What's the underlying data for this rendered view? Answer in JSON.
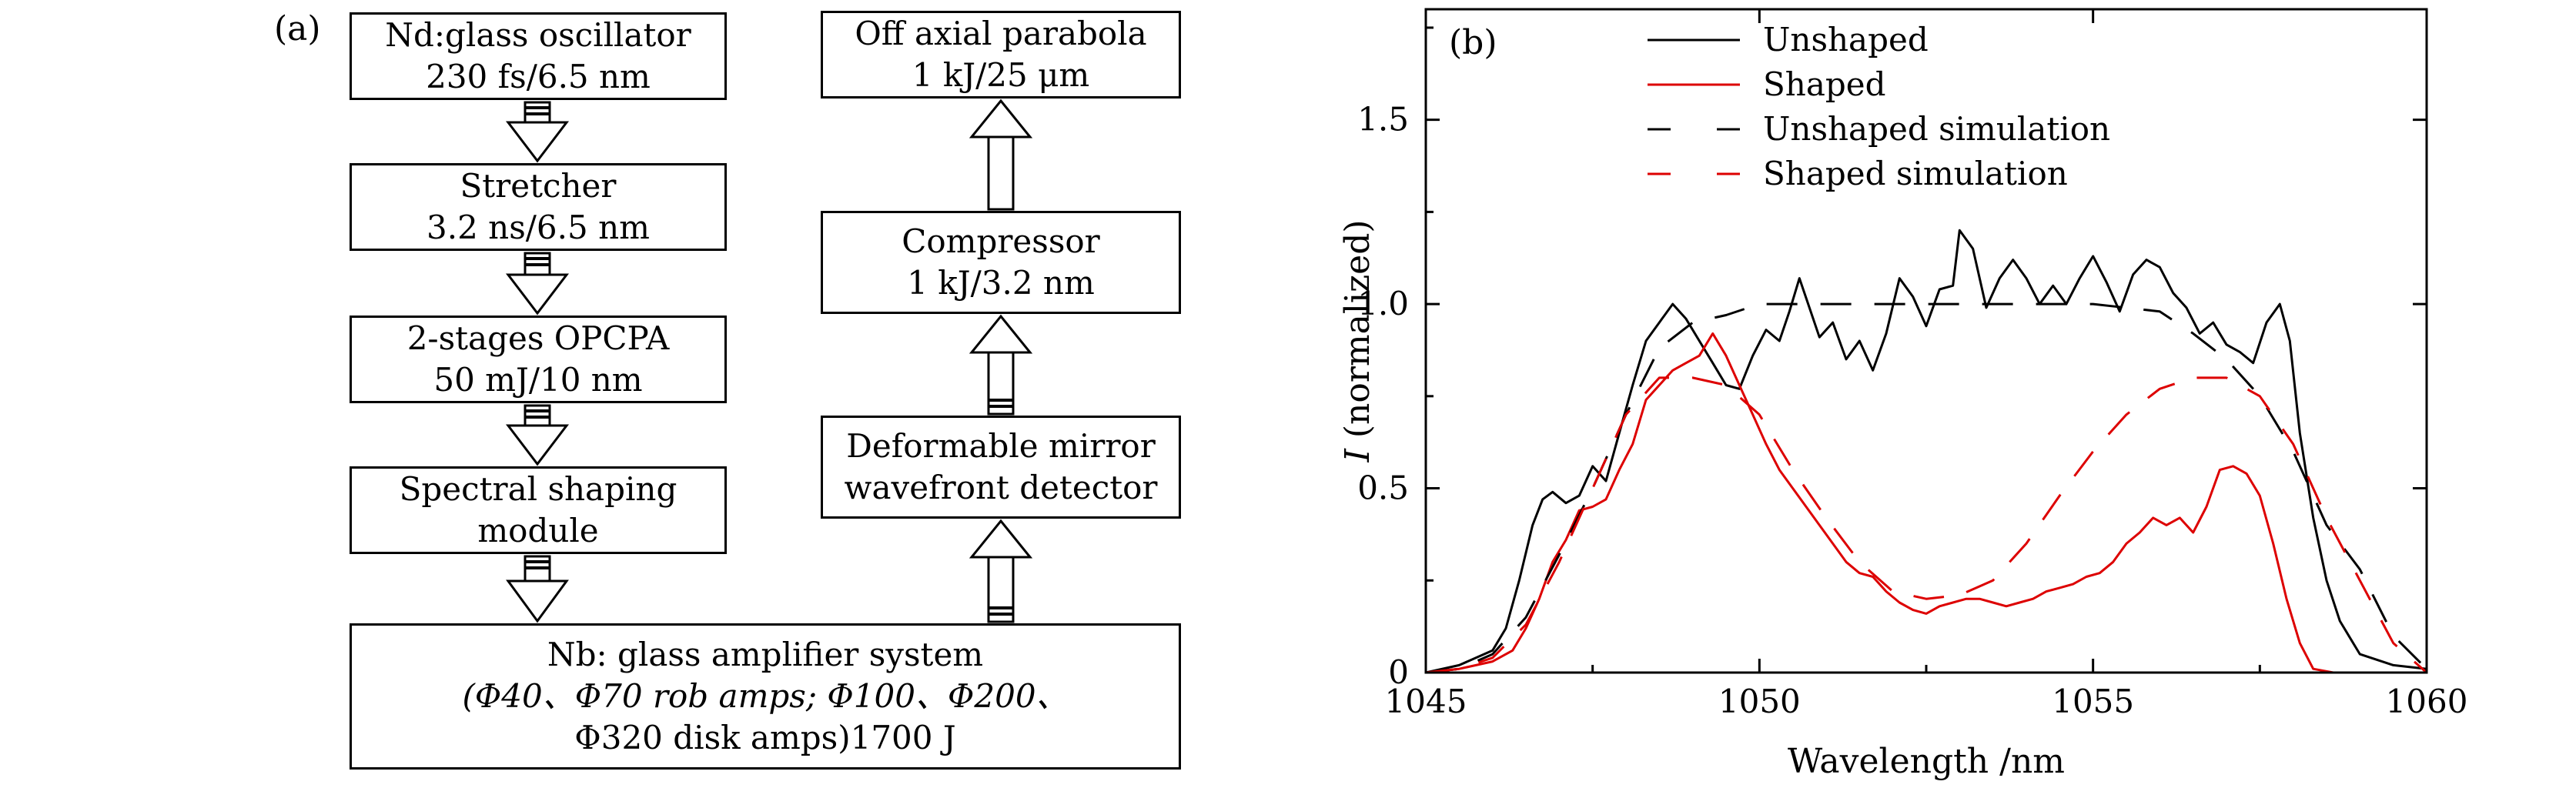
{
  "diagram": {
    "panel_label": "(a)",
    "boxes": {
      "oscillator": [
        "Nd:glass oscillator",
        "230 fs/6.5 nm"
      ],
      "stretcher": [
        "Stretcher",
        "3.2 ns/6.5 nm"
      ],
      "opcpa": [
        "2-stages OPCPA",
        "50 mJ/10 nm"
      ],
      "shaping": [
        "Spectral shaping",
        "module"
      ],
      "amplifier": [
        "Nb: glass amplifier system",
        "(Φ40、Φ70 rob amps; Φ100、Φ200、",
        "Φ320 disk amps)1700 J"
      ],
      "deformable": [
        "Deformable mirror",
        "wavefront detector"
      ],
      "compressor": [
        "Compressor",
        "1 kJ/3.2 nm"
      ],
      "parabola": [
        "Off axial parabola",
        "1 kJ/25 μm"
      ]
    }
  },
  "chart_data": {
    "type": "line",
    "panel_label": "(b)",
    "xlabel": "Wavelength /nm",
    "ylabel_italic": "I",
    "ylabel": " (normalized)",
    "xlim": [
      1045,
      1060
    ],
    "ylim": [
      0,
      1.8
    ],
    "x_ticks": [
      "1045",
      "1050",
      "1055",
      "1060"
    ],
    "y_ticks": [
      "0",
      "0.5",
      "1.0",
      "1.5"
    ],
    "legend_position": "top-right",
    "series": [
      {
        "name": "Unshaped",
        "color": "#000000",
        "style": "solid",
        "points": [
          [
            1045,
            0.0
          ],
          [
            1045.5,
            0.02
          ],
          [
            1046,
            0.06
          ],
          [
            1046.2,
            0.12
          ],
          [
            1046.4,
            0.25
          ],
          [
            1046.6,
            0.4
          ],
          [
            1046.75,
            0.47
          ],
          [
            1046.9,
            0.49
          ],
          [
            1047.1,
            0.46
          ],
          [
            1047.3,
            0.48
          ],
          [
            1047.5,
            0.56
          ],
          [
            1047.7,
            0.52
          ],
          [
            1047.9,
            0.65
          ],
          [
            1048.1,
            0.78
          ],
          [
            1048.3,
            0.9
          ],
          [
            1048.5,
            0.95
          ],
          [
            1048.7,
            1.0
          ],
          [
            1048.9,
            0.96
          ],
          [
            1049.1,
            0.9
          ],
          [
            1049.3,
            0.84
          ],
          [
            1049.5,
            0.78
          ],
          [
            1049.7,
            0.77
          ],
          [
            1049.9,
            0.86
          ],
          [
            1050.1,
            0.93
          ],
          [
            1050.3,
            0.9
          ],
          [
            1050.45,
            0.98
          ],
          [
            1050.6,
            1.07
          ],
          [
            1050.75,
            0.99
          ],
          [
            1050.9,
            0.91
          ],
          [
            1051.1,
            0.95
          ],
          [
            1051.3,
            0.85
          ],
          [
            1051.5,
            0.9
          ],
          [
            1051.7,
            0.82
          ],
          [
            1051.9,
            0.92
          ],
          [
            1052.1,
            1.07
          ],
          [
            1052.3,
            1.02
          ],
          [
            1052.5,
            0.94
          ],
          [
            1052.7,
            1.04
          ],
          [
            1052.9,
            1.05
          ],
          [
            1053.0,
            1.2
          ],
          [
            1053.2,
            1.15
          ],
          [
            1053.4,
            0.99
          ],
          [
            1053.6,
            1.07
          ],
          [
            1053.8,
            1.12
          ],
          [
            1054.0,
            1.07
          ],
          [
            1054.2,
            1.0
          ],
          [
            1054.4,
            1.05
          ],
          [
            1054.6,
            1.0
          ],
          [
            1054.8,
            1.07
          ],
          [
            1055.0,
            1.13
          ],
          [
            1055.2,
            1.06
          ],
          [
            1055.4,
            0.98
          ],
          [
            1055.6,
            1.08
          ],
          [
            1055.8,
            1.12
          ],
          [
            1056.0,
            1.1
          ],
          [
            1056.2,
            1.03
          ],
          [
            1056.4,
            0.99
          ],
          [
            1056.6,
            0.92
          ],
          [
            1056.8,
            0.95
          ],
          [
            1057.0,
            0.89
          ],
          [
            1057.2,
            0.87
          ],
          [
            1057.4,
            0.84
          ],
          [
            1057.6,
            0.95
          ],
          [
            1057.8,
            1.0
          ],
          [
            1057.95,
            0.9
          ],
          [
            1058.1,
            0.65
          ],
          [
            1058.3,
            0.42
          ],
          [
            1058.5,
            0.25
          ],
          [
            1058.7,
            0.14
          ],
          [
            1059.0,
            0.05
          ],
          [
            1059.5,
            0.02
          ],
          [
            1060,
            0.01
          ]
        ]
      },
      {
        "name": "Shaped",
        "color": "#dd0000",
        "style": "solid",
        "points": [
          [
            1045,
            0.0
          ],
          [
            1045.5,
            0.01
          ],
          [
            1046,
            0.03
          ],
          [
            1046.3,
            0.06
          ],
          [
            1046.5,
            0.12
          ],
          [
            1046.7,
            0.2
          ],
          [
            1046.9,
            0.3
          ],
          [
            1047.1,
            0.36
          ],
          [
            1047.3,
            0.44
          ],
          [
            1047.5,
            0.45
          ],
          [
            1047.7,
            0.47
          ],
          [
            1047.9,
            0.55
          ],
          [
            1048.1,
            0.62
          ],
          [
            1048.3,
            0.74
          ],
          [
            1048.5,
            0.78
          ],
          [
            1048.7,
            0.82
          ],
          [
            1048.9,
            0.84
          ],
          [
            1049.1,
            0.86
          ],
          [
            1049.3,
            0.92
          ],
          [
            1049.5,
            0.86
          ],
          [
            1049.7,
            0.78
          ],
          [
            1049.9,
            0.7
          ],
          [
            1050.1,
            0.62
          ],
          [
            1050.3,
            0.55
          ],
          [
            1050.5,
            0.5
          ],
          [
            1050.7,
            0.45
          ],
          [
            1050.9,
            0.4
          ],
          [
            1051.1,
            0.35
          ],
          [
            1051.3,
            0.3
          ],
          [
            1051.5,
            0.27
          ],
          [
            1051.7,
            0.26
          ],
          [
            1051.9,
            0.22
          ],
          [
            1052.1,
            0.19
          ],
          [
            1052.3,
            0.17
          ],
          [
            1052.5,
            0.16
          ],
          [
            1052.7,
            0.18
          ],
          [
            1052.9,
            0.19
          ],
          [
            1053.1,
            0.2
          ],
          [
            1053.3,
            0.2
          ],
          [
            1053.5,
            0.19
          ],
          [
            1053.7,
            0.18
          ],
          [
            1053.9,
            0.19
          ],
          [
            1054.1,
            0.2
          ],
          [
            1054.3,
            0.22
          ],
          [
            1054.5,
            0.23
          ],
          [
            1054.7,
            0.24
          ],
          [
            1054.9,
            0.26
          ],
          [
            1055.1,
            0.27
          ],
          [
            1055.3,
            0.3
          ],
          [
            1055.5,
            0.35
          ],
          [
            1055.7,
            0.38
          ],
          [
            1055.9,
            0.42
          ],
          [
            1056.1,
            0.4
          ],
          [
            1056.3,
            0.42
          ],
          [
            1056.5,
            0.38
          ],
          [
            1056.7,
            0.45
          ],
          [
            1056.9,
            0.55
          ],
          [
            1057.1,
            0.56
          ],
          [
            1057.3,
            0.54
          ],
          [
            1057.5,
            0.48
          ],
          [
            1057.7,
            0.35
          ],
          [
            1057.9,
            0.2
          ],
          [
            1058.1,
            0.08
          ],
          [
            1058.3,
            0.01
          ],
          [
            1058.6,
            0.0
          ],
          [
            1060,
            0.0
          ]
        ]
      },
      {
        "name": "Unshaped simulation",
        "color": "#000000",
        "style": "dashed",
        "points": [
          [
            1045,
            0.0
          ],
          [
            1045.5,
            0.01
          ],
          [
            1046,
            0.05
          ],
          [
            1046.5,
            0.15
          ],
          [
            1047,
            0.32
          ],
          [
            1047.5,
            0.5
          ],
          [
            1048,
            0.7
          ],
          [
            1048.5,
            0.88
          ],
          [
            1049,
            0.95
          ],
          [
            1049.5,
            0.97
          ],
          [
            1050,
            1.0
          ],
          [
            1051,
            1.0
          ],
          [
            1052,
            1.0
          ],
          [
            1053,
            1.0
          ],
          [
            1054,
            1.0
          ],
          [
            1055,
            1.0
          ],
          [
            1056,
            0.98
          ],
          [
            1056.5,
            0.92
          ],
          [
            1057,
            0.85
          ],
          [
            1057.5,
            0.75
          ],
          [
            1058,
            0.6
          ],
          [
            1058.5,
            0.4
          ],
          [
            1059,
            0.28
          ],
          [
            1059.5,
            0.1
          ],
          [
            1060,
            0.01
          ]
        ]
      },
      {
        "name": "Shaped simulation",
        "color": "#dd0000",
        "style": "dashed",
        "points": [
          [
            1045,
            0.0
          ],
          [
            1045.5,
            0.01
          ],
          [
            1046,
            0.04
          ],
          [
            1046.5,
            0.13
          ],
          [
            1047,
            0.3
          ],
          [
            1047.5,
            0.5
          ],
          [
            1048,
            0.7
          ],
          [
            1048.5,
            0.8
          ],
          [
            1049,
            0.8
          ],
          [
            1049.5,
            0.78
          ],
          [
            1050,
            0.7
          ],
          [
            1050.5,
            0.55
          ],
          [
            1051,
            0.42
          ],
          [
            1051.5,
            0.3
          ],
          [
            1052,
            0.22
          ],
          [
            1052.5,
            0.2
          ],
          [
            1053,
            0.21
          ],
          [
            1053.5,
            0.25
          ],
          [
            1054,
            0.35
          ],
          [
            1054.5,
            0.48
          ],
          [
            1055,
            0.6
          ],
          [
            1055.5,
            0.7
          ],
          [
            1056,
            0.77
          ],
          [
            1056.5,
            0.8
          ],
          [
            1057,
            0.8
          ],
          [
            1057.5,
            0.75
          ],
          [
            1058,
            0.62
          ],
          [
            1058.5,
            0.42
          ],
          [
            1059,
            0.25
          ],
          [
            1059.5,
            0.08
          ],
          [
            1060,
            0.0
          ]
        ]
      }
    ]
  }
}
